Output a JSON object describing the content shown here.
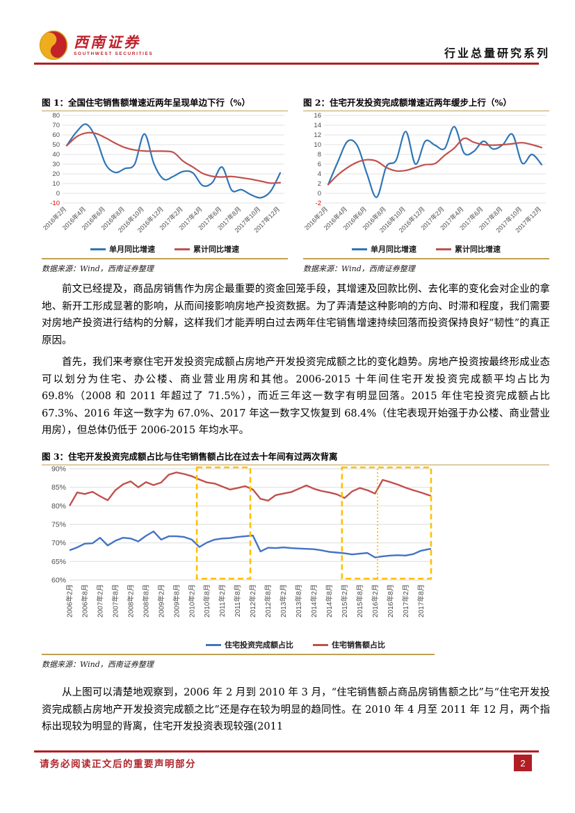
{
  "header": {
    "logo_cn": "西南证券",
    "logo_en": "SOUTHWEST SECURITIES",
    "series_title": "行业总量研究系列"
  },
  "colors": {
    "brand_red": "#B01E24",
    "gold_rule": "#BFA054",
    "grid": "#D9D9D9",
    "tick": "#4A4A4A",
    "negative_tick": "#E00000",
    "blue_series": "#2E75B6",
    "red_series": "#C0504D",
    "fig3_blue": "#4472C4",
    "fig3_red": "#C0504D",
    "highlight_yellow": "#FFC000"
  },
  "figures": {
    "fig1": {
      "title": "图 1：全国住宅销售额增速近两年呈现单边下行（%）",
      "source": "数据来源：Wind，西南证券整理"
    },
    "fig2": {
      "title": "图 2：住宅开发投资完成额增速近两年缓步上行（%）",
      "source": "数据来源：Wind，西南证券整理"
    },
    "fig3": {
      "title": "图 3：住宅开发投资完成额占比与住宅销售额占比在过去十年间有过两次背离",
      "source": "数据来源：Wind，西南证券整理"
    }
  },
  "chart_data": [
    {
      "id": "fig1",
      "type": "line",
      "title": "全国住宅销售额增速近两年呈现单边下行（%）",
      "x_start": "2016年2月",
      "x_end": "2017年12月",
      "points": 23,
      "x_tick_labels": [
        "2016年2月",
        "2016年4月",
        "2016年6月",
        "2016年8月",
        "2016年10月",
        "2016年12月",
        "2017年2月",
        "2017年4月",
        "2017年6月",
        "2017年8月",
        "2017年10月",
        "2017年12月"
      ],
      "ylim": [
        -10,
        80
      ],
      "ytick_step": 10,
      "grid": true,
      "legend_position": "bottom",
      "series": [
        {
          "name": "单月同比增速",
          "color": "#2E75B6",
          "values": [
            49,
            63,
            71,
            57,
            30,
            21.5,
            25.5,
            30,
            61,
            30,
            14.5,
            17.5,
            22.5,
            21,
            8,
            11,
            27,
            3.2,
            3.8,
            -1.5,
            -4.5,
            2,
            21
          ]
        },
        {
          "name": "累计同比增速",
          "color": "#C0504D",
          "values": [
            49,
            58,
            62,
            61.5,
            57,
            51.5,
            47,
            44.5,
            43.5,
            43.3,
            43.3,
            42,
            33,
            27,
            20.5,
            17.5,
            16.8,
            17.3,
            16,
            14.5,
            12.5,
            10.5,
            11
          ]
        }
      ]
    },
    {
      "id": "fig2",
      "type": "line",
      "title": "住宅开发投资完成额增速近两年缓步上行（%）",
      "x_start": "2016年2月",
      "x_end": "2017年12月",
      "points": 23,
      "x_tick_labels": [
        "2016年2月",
        "2016年4月",
        "2016年6月",
        "2016年8月",
        "2016年10月",
        "2016年12月",
        "2017年2月",
        "2017年4月",
        "2017年6月",
        "2017年8月",
        "2017年10月",
        "2017年12月"
      ],
      "ylim": [
        -2,
        16
      ],
      "ytick_step": 2,
      "grid": true,
      "legend_position": "bottom",
      "series": [
        {
          "name": "单月同比增速",
          "color": "#2E75B6",
          "values": [
            1.8,
            6.5,
            10.7,
            9.8,
            4,
            -0.8,
            5.5,
            6.8,
            12.7,
            6,
            10.7,
            9.9,
            9.2,
            13.7,
            8.3,
            8.6,
            10.7,
            9.1,
            10,
            12.1,
            6.2,
            8,
            5.9
          ]
        },
        {
          "name": "累计同比增速",
          "color": "#C0504D",
          "values": [
            1.8,
            3.8,
            5.3,
            6.4,
            6.9,
            6.6,
            5.3,
            4.6,
            4.7,
            5.3,
            5.9,
            6.1,
            7.8,
            9.3,
            11.3,
            10.5,
            10,
            9.9,
            10,
            10.2,
            10.4,
            10,
            9.4
          ]
        }
      ]
    },
    {
      "id": "fig3",
      "type": "line",
      "title": "住宅开发投资完成额占比与住宅销售额占比在过去十年间有过两次背离",
      "x_start": "2006年2月",
      "x_end": "2017年12月",
      "sampling": "quarterly estimates (48 points), Feb/May/Aug/Nov each year",
      "months_total": 142,
      "x_tick_labels": [
        "2006年2月",
        "2006年8月",
        "2007年2月",
        "2007年8月",
        "2008年2月",
        "2008年8月",
        "2009年2月",
        "2009年8月",
        "2010年2月",
        "2010年8月",
        "2011年2月",
        "2011年8月",
        "2012年2月",
        "2012年8月",
        "2013年2月",
        "2013年8月",
        "2014年2月",
        "2014年8月",
        "2015年2月",
        "2015年8月",
        "2016年2月",
        "2016年8月",
        "2017年2月",
        "2017年8月"
      ],
      "ylim": [
        60,
        90
      ],
      "ytick_step": 5,
      "y_suffix": "%",
      "grid": true,
      "legend_position": "bottom",
      "series": [
        {
          "name": "住宅投资完成额占比",
          "color": "#4472C4",
          "end_value": 68.4,
          "values": [
            68,
            68.8,
            69.8,
            69.9,
            71.4,
            69.3,
            70.6,
            71.4,
            71.2,
            70.4,
            71.9,
            73.1,
            70.9,
            71.8,
            71.8,
            71.6,
            70.9,
            68.9,
            70.1,
            70.9,
            71.2,
            71.3,
            71.6,
            71.8,
            72,
            67.7,
            68.7,
            68.6,
            68.8,
            68.6,
            68.5,
            68.4,
            68.3,
            68,
            67.6,
            67.4,
            67.2,
            66.9,
            67.1,
            67.3,
            66.1,
            66.4,
            66.6,
            66.7,
            66.6,
            67,
            67.9,
            68.3
          ]
        },
        {
          "name": "住宅销售额占比",
          "color": "#C0504D",
          "end_value": 82.7,
          "values": [
            80,
            83.6,
            83.2,
            83.8,
            82.6,
            81.5,
            84.2,
            85.8,
            86.6,
            85,
            86.4,
            85.6,
            86.3,
            88.4,
            89,
            88.6,
            88,
            87.1,
            86.3,
            86,
            85.2,
            84.4,
            84.8,
            85.3,
            84.4,
            81.9,
            81.4,
            82.9,
            83.3,
            83.7,
            84.6,
            85.5,
            84.6,
            84,
            83.6,
            83.1,
            82.1,
            83.9,
            84.8,
            84.2,
            83.3,
            87,
            86.4,
            85.7,
            84.9,
            84.2,
            83.6,
            82.9
          ]
        }
      ],
      "highlight_boxes": [
        {
          "from_month": 50,
          "to_month": 71,
          "note": "2010年4月-2011年12月背离区间"
        },
        {
          "from_month": 107,
          "to_month": 142,
          "divider_month": 121,
          "note": "2015-2017年背离区间"
        }
      ]
    }
  ],
  "paragraphs": {
    "p1": "前文已经提及，商品房销售作为房企最重要的资金回笼手段，其增速及回款比例、去化率的变化会对企业的拿地、新开工形成显著的影响，从而间接影响房地产投资数据。为了弄清楚这种影响的方向、时滞和程度，我们需要对房地产投资进行结构的分解，这样我们才能弄明白过去两年住宅销售增速持续回落而投资保持良好“韧性”的真正原因。",
    "p2": "首先，我们来考察住宅开发投资完成额占房地产开发投资完成额之比的变化趋势。房地产投资按最终形成业态可以划分为住宅、办公楼、商业营业用房和其他。2006-2015 十年间住宅开发投资完成额平均占比为 69.8%（2008 和 2011 年超过了 71.5%），而近三年这一数字有明显回落。2015 年住宅投资完成额占比 67.3%、2016 年这一数字为 67.0%、2017 年这一数字又恢复到 68.4%（住宅表现开始强于办公楼、商业营业用房），但总体仍低于 2006-2015 年均水平。",
    "p3": "从上图可以清楚地观察到，2006 年 2 月到 2010 年 3 月，“住宅销售额占商品房销售额之比”与“住宅开发投资完成额占房地产开发投资完成额之比”还是存在较为明显的趋同性。在 2010 年 4 月至 2011 年 12 月，两个指标出现较为明显的背离，住宅开发投资表现较强(2011"
  },
  "footer": {
    "disclaimer": "请务必阅读正文后的重要声明部分",
    "page_number": "2"
  }
}
